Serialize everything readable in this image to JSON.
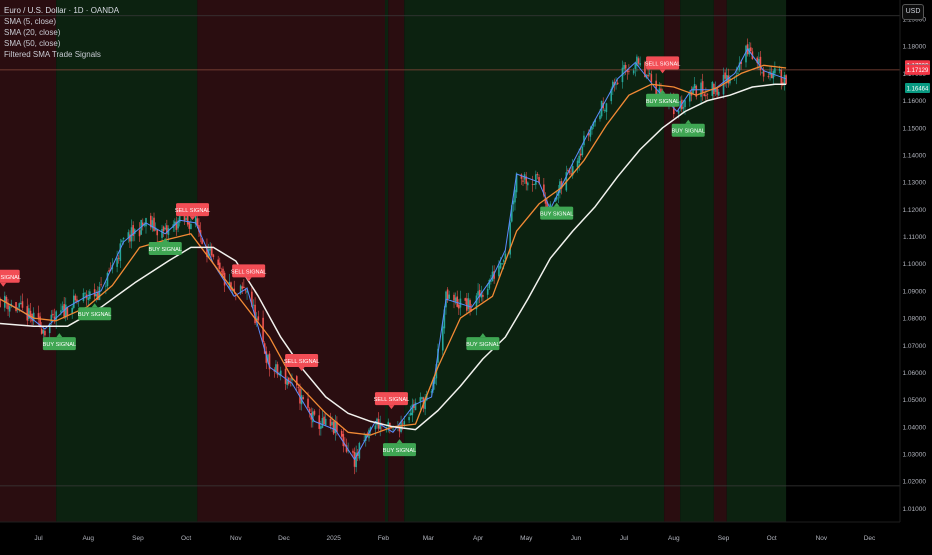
{
  "legend": {
    "title": "Euro / U.S. Dollar · 1D · OANDA",
    "indicators": [
      "SMA (5, close)",
      "SMA (20, close)",
      "SMA (50, close)",
      "Filtered SMA Trade Signals"
    ]
  },
  "currency": "USD",
  "colors": {
    "background": "#000000",
    "bull_zone": "#0c2210",
    "bear_zone": "#2a0d10",
    "sma5": "#5b8cff",
    "sma20": "#f28a35",
    "sma50": "#f2f2ee",
    "up_candle": "#26a69a",
    "down_candle": "#ef5350",
    "buy_label": "#3fa653",
    "sell_label": "#f24d55",
    "price_labels": [
      "#f23645",
      "#787b86",
      "#f23645",
      "#089981"
    ]
  },
  "chart_data": {
    "type": "line",
    "title": "Euro / U.S. Dollar · 1D · OANDA",
    "xlabel": "",
    "ylabel": "",
    "ylim": [
      1.005,
      1.197
    ],
    "x_range": [
      "2024-06-07",
      "2025-12-20"
    ],
    "x_tick_labels": [
      {
        "label": "Jul",
        "date": "2024-07-01"
      },
      {
        "label": "Aug",
        "date": "2024-08-01"
      },
      {
        "label": "Sep",
        "date": "2024-09-01"
      },
      {
        "label": "Oct",
        "date": "2024-10-01"
      },
      {
        "label": "Nov",
        "date": "2024-11-01"
      },
      {
        "label": "Dec",
        "date": "2024-12-01"
      },
      {
        "label": "2025",
        "date": "2025-01-01"
      },
      {
        "label": "Feb",
        "date": "2025-02-01"
      },
      {
        "label": "Mar",
        "date": "2025-03-01"
      },
      {
        "label": "Apr",
        "date": "2025-04-01"
      },
      {
        "label": "May",
        "date": "2025-05-01"
      },
      {
        "label": "Jun",
        "date": "2025-06-01"
      },
      {
        "label": "Jul",
        "date": "2025-07-01"
      },
      {
        "label": "Aug",
        "date": "2025-08-01"
      },
      {
        "label": "Sep",
        "date": "2025-09-01"
      },
      {
        "label": "Oct",
        "date": "2025-10-01"
      },
      {
        "label": "Nov",
        "date": "2025-11-01"
      },
      {
        "label": "Dec",
        "date": "2025-12-01"
      }
    ],
    "y_tick_labels": [
      "1.19000",
      "1.18000",
      "1.17000",
      "1.16000",
      "1.15000",
      "1.14000",
      "1.13000",
      "1.12000",
      "1.11000",
      "1.10000",
      "1.09000",
      "1.08000",
      "1.07000",
      "1.06000",
      "1.05000",
      "1.04000",
      "1.03000",
      "1.02000",
      "1.01000"
    ],
    "price_labels": [
      "1.17300",
      "1.17155",
      "1.17129",
      "1.16464"
    ],
    "horizontal_lines": [
      1.1912,
      1.1713,
      1.0183
    ],
    "last_bar_date": "2025-10-10",
    "background_zones": [
      {
        "trend": "bear",
        "start": "2024-06-07",
        "end": "2024-07-12"
      },
      {
        "trend": "bull",
        "start": "2024-07-12",
        "end": "2024-10-08"
      },
      {
        "trend": "bear",
        "start": "2024-10-08",
        "end": "2025-02-02"
      },
      {
        "trend": "bull",
        "start": "2025-02-02",
        "end": "2025-02-04"
      },
      {
        "trend": "bear",
        "start": "2025-02-04",
        "end": "2025-02-14"
      },
      {
        "trend": "bull",
        "start": "2025-02-14",
        "end": "2025-07-26"
      },
      {
        "trend": "bear",
        "start": "2025-07-26",
        "end": "2025-08-05"
      },
      {
        "trend": "bull",
        "start": "2025-08-05",
        "end": "2025-08-26"
      },
      {
        "trend": "bear",
        "start": "2025-08-26",
        "end": "2025-09-03"
      },
      {
        "trend": "bull",
        "start": "2025-09-03",
        "end": "2025-10-10"
      }
    ],
    "series": [
      {
        "name": "SMA (5, close)",
        "points": [
          [
            "2024-06-07",
            1.087
          ],
          [
            "2024-06-21",
            1.0825
          ],
          [
            "2024-07-05",
            1.076
          ],
          [
            "2024-07-19",
            1.084
          ],
          [
            "2024-07-31",
            1.088
          ],
          [
            "2024-08-09",
            1.09
          ],
          [
            "2024-08-23",
            1.108
          ],
          [
            "2024-09-06",
            1.115
          ],
          [
            "2024-09-18",
            1.111
          ],
          [
            "2024-09-27",
            1.116
          ],
          [
            "2024-10-07",
            1.115
          ],
          [
            "2024-10-18",
            1.1
          ],
          [
            "2024-10-31",
            1.088
          ],
          [
            "2024-11-08",
            1.091
          ],
          [
            "2024-11-22",
            1.062
          ],
          [
            "2024-12-06",
            1.056
          ],
          [
            "2024-12-20",
            1.042
          ],
          [
            "2025-01-02",
            1.039
          ],
          [
            "2025-01-14",
            1.028
          ],
          [
            "2025-01-27",
            1.042
          ],
          [
            "2025-02-07",
            1.038
          ],
          [
            "2025-02-20",
            1.048
          ],
          [
            "2025-03-03",
            1.051
          ],
          [
            "2025-03-12",
            1.087
          ],
          [
            "2025-03-28",
            1.084
          ],
          [
            "2025-04-10",
            1.095
          ],
          [
            "2025-04-18",
            1.105
          ],
          [
            "2025-04-25",
            1.133
          ],
          [
            "2025-05-09",
            1.13
          ],
          [
            "2025-05-16",
            1.12
          ],
          [
            "2025-05-30",
            1.137
          ],
          [
            "2025-06-13",
            1.153
          ],
          [
            "2025-06-27",
            1.168
          ],
          [
            "2025-07-08",
            1.174
          ],
          [
            "2025-07-20",
            1.165
          ],
          [
            "2025-08-03",
            1.156
          ],
          [
            "2025-08-12",
            1.164
          ],
          [
            "2025-08-26",
            1.164
          ],
          [
            "2025-09-08",
            1.17
          ],
          [
            "2025-09-16",
            1.179
          ],
          [
            "2025-09-26",
            1.171
          ],
          [
            "2025-10-10",
            1.168
          ]
        ]
      },
      {
        "name": "SMA (20, close)",
        "points": [
          [
            "2024-06-07",
            1.087
          ],
          [
            "2024-06-28",
            1.08
          ],
          [
            "2024-07-12",
            1.079
          ],
          [
            "2024-07-31",
            1.084
          ],
          [
            "2024-08-16",
            1.092
          ],
          [
            "2024-09-02",
            1.106
          ],
          [
            "2024-09-20",
            1.109
          ],
          [
            "2024-10-04",
            1.111
          ],
          [
            "2024-10-18",
            1.1
          ],
          [
            "2024-11-01",
            1.089
          ],
          [
            "2024-11-22",
            1.073
          ],
          [
            "2024-12-06",
            1.058
          ],
          [
            "2024-12-27",
            1.045
          ],
          [
            "2025-01-10",
            1.038
          ],
          [
            "2025-01-24",
            1.037
          ],
          [
            "2025-02-07",
            1.04
          ],
          [
            "2025-02-21",
            1.041
          ],
          [
            "2025-03-07",
            1.062
          ],
          [
            "2025-03-21",
            1.08
          ],
          [
            "2025-04-10",
            1.088
          ],
          [
            "2025-04-25",
            1.112
          ],
          [
            "2025-05-09",
            1.122
          ],
          [
            "2025-05-23",
            1.128
          ],
          [
            "2025-06-06",
            1.138
          ],
          [
            "2025-06-20",
            1.151
          ],
          [
            "2025-07-04",
            1.162
          ],
          [
            "2025-07-18",
            1.166
          ],
          [
            "2025-08-01",
            1.165
          ],
          [
            "2025-08-15",
            1.162
          ],
          [
            "2025-08-29",
            1.165
          ],
          [
            "2025-09-12",
            1.17
          ],
          [
            "2025-09-26",
            1.173
          ],
          [
            "2025-10-10",
            1.172
          ]
        ]
      },
      {
        "name": "SMA (50, close)",
        "points": [
          [
            "2024-06-07",
            1.078
          ],
          [
            "2024-06-28",
            1.077
          ],
          [
            "2024-07-19",
            1.077
          ],
          [
            "2024-08-09",
            1.084
          ],
          [
            "2024-08-30",
            1.093
          ],
          [
            "2024-09-20",
            1.101
          ],
          [
            "2024-10-04",
            1.106
          ],
          [
            "2024-10-18",
            1.106
          ],
          [
            "2024-11-01",
            1.101
          ],
          [
            "2024-11-15",
            1.088
          ],
          [
            "2024-11-29",
            1.073
          ],
          [
            "2024-12-13",
            1.061
          ],
          [
            "2024-12-27",
            1.051
          ],
          [
            "2025-01-10",
            1.045
          ],
          [
            "2025-01-24",
            1.042
          ],
          [
            "2025-02-07",
            1.04
          ],
          [
            "2025-02-21",
            1.039
          ],
          [
            "2025-03-07",
            1.046
          ],
          [
            "2025-03-21",
            1.055
          ],
          [
            "2025-04-04",
            1.065
          ],
          [
            "2025-04-18",
            1.073
          ],
          [
            "2025-05-02",
            1.087
          ],
          [
            "2025-05-16",
            1.102
          ],
          [
            "2025-05-30",
            1.112
          ],
          [
            "2025-06-13",
            1.121
          ],
          [
            "2025-06-27",
            1.132
          ],
          [
            "2025-07-11",
            1.142
          ],
          [
            "2025-07-25",
            1.15
          ],
          [
            "2025-08-08",
            1.156
          ],
          [
            "2025-08-22",
            1.16
          ],
          [
            "2025-09-05",
            1.162
          ],
          [
            "2025-09-19",
            1.165
          ],
          [
            "2025-10-03",
            1.166
          ],
          [
            "2025-10-10",
            1.166
          ]
        ]
      }
    ],
    "annotations": [
      {
        "text": "SELL SIGNAL",
        "type": "sell",
        "date": "2024-06-09",
        "y": 1.093
      },
      {
        "text": "BUY SIGNAL",
        "type": "buy",
        "date": "2024-07-14",
        "y": 1.073
      },
      {
        "text": "BUY SIGNAL",
        "type": "buy",
        "date": "2024-08-05",
        "y": 1.084
      },
      {
        "text": "BUY SIGNAL",
        "type": "buy",
        "date": "2024-09-18",
        "y": 1.108
      },
      {
        "text": "SELL SIGNAL",
        "type": "sell",
        "date": "2024-10-05",
        "y": 1.1175
      },
      {
        "text": "SELL SIGNAL",
        "type": "sell",
        "date": "2024-11-09",
        "y": 1.095
      },
      {
        "text": "SELL SIGNAL",
        "type": "sell",
        "date": "2024-12-12",
        "y": 1.062
      },
      {
        "text": "SELL SIGNAL",
        "type": "sell",
        "date": "2025-02-06",
        "y": 1.048
      },
      {
        "text": "BUY SIGNAL",
        "type": "buy",
        "date": "2025-02-11",
        "y": 1.034
      },
      {
        "text": "BUY SIGNAL",
        "type": "buy",
        "date": "2025-04-04",
        "y": 1.073
      },
      {
        "text": "BUY SIGNAL",
        "type": "buy",
        "date": "2025-05-20",
        "y": 1.121
      },
      {
        "text": "SELL SIGNAL",
        "type": "sell",
        "date": "2025-07-25",
        "y": 1.1715
      },
      {
        "text": "BUY SIGNAL",
        "type": "buy",
        "date": "2025-07-25",
        "y": 1.1625
      },
      {
        "text": "BUY SIGNAL",
        "type": "buy",
        "date": "2025-08-10",
        "y": 1.1515
      }
    ]
  }
}
